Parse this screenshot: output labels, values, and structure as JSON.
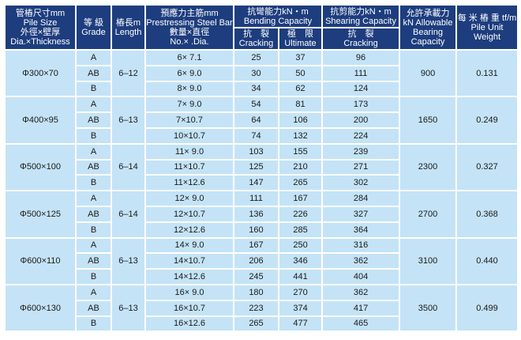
{
  "headers": {
    "pile_size": [
      "管樁尺寸mm",
      "Pile Size",
      "外徑×壁厚",
      "Dia.×Thickness"
    ],
    "grade": [
      "等 級",
      "Grade"
    ],
    "length": [
      "樁長m",
      "Length"
    ],
    "steel_bar": [
      "預應力主筋mm",
      "Prestressing Steel Bar",
      "數量×直徑",
      "No.× .Dia."
    ],
    "bending": [
      "抗彎能力kN・m",
      "Bending Capacity"
    ],
    "bending_cracking": [
      "抗　裂",
      "Cracking"
    ],
    "bending_ultimate": [
      "極　限",
      "Ultimate"
    ],
    "shearing": [
      "抗剪能力kN・m",
      "Shearing Capacity"
    ],
    "shearing_cracking": [
      "抗　裂",
      "Cracking"
    ],
    "bearing": [
      "允許承載力",
      "kN Allowable",
      "Bearing",
      "Capacity"
    ],
    "weight": [
      "每 米 樁 重 tf/m",
      "Pile Unit Weight"
    ]
  },
  "groups": [
    {
      "size": "Φ300×70",
      "length": "6–12",
      "bearing": "900",
      "weight": "0.131",
      "rows": [
        {
          "grade": "A",
          "bar": "6×  7.1",
          "crack": "25",
          "ult": "37",
          "shear": "96"
        },
        {
          "grade": "AB",
          "bar": "6×  9.0",
          "crack": "30",
          "ult": "50",
          "shear": "111"
        },
        {
          "grade": "B",
          "bar": "8×  9.0",
          "crack": "34",
          "ult": "62",
          "shear": "124"
        }
      ]
    },
    {
      "size": "Φ400×95",
      "length": "6–13",
      "bearing": "1650",
      "weight": "0.249",
      "rows": [
        {
          "grade": "A",
          "bar": "7×  9.0",
          "crack": "54",
          "ult": "81",
          "shear": "173"
        },
        {
          "grade": "AB",
          "bar": "7×10.7",
          "crack": "64",
          "ult": "106",
          "shear": "200"
        },
        {
          "grade": "B",
          "bar": "10×10.7",
          "crack": "74",
          "ult": "132",
          "shear": "224"
        }
      ]
    },
    {
      "size": "Φ500×100",
      "length": "6–14",
      "bearing": "2300",
      "weight": "0.327",
      "rows": [
        {
          "grade": "A",
          "bar": "11×  9.0",
          "crack": "103",
          "ult": "155",
          "shear": "239"
        },
        {
          "grade": "AB",
          "bar": "11×10.7",
          "crack": "125",
          "ult": "210",
          "shear": "271"
        },
        {
          "grade": "B",
          "bar": "11×12.6",
          "crack": "147",
          "ult": "265",
          "shear": "302"
        }
      ]
    },
    {
      "size": "Φ500×125",
      "length": "6–14",
      "bearing": "2700",
      "weight": "0.368",
      "rows": [
        {
          "grade": "A",
          "bar": "12×  9.0",
          "crack": "111",
          "ult": "167",
          "shear": "284"
        },
        {
          "grade": "AB",
          "bar": "12×10.7",
          "crack": "136",
          "ult": "226",
          "shear": "327"
        },
        {
          "grade": "B",
          "bar": "12×12.6",
          "crack": "160",
          "ult": "285",
          "shear": "364"
        }
      ]
    },
    {
      "size": "Φ600×110",
      "length": "6–13",
      "bearing": "3100",
      "weight": "0.440",
      "rows": [
        {
          "grade": "A",
          "bar": "14×  9.0",
          "crack": "167",
          "ult": "250",
          "shear": "316"
        },
        {
          "grade": "AB",
          "bar": "14×10.7",
          "crack": "206",
          "ult": "346",
          "shear": "362"
        },
        {
          "grade": "B",
          "bar": "14×12.6",
          "crack": "245",
          "ult": "441",
          "shear": "404"
        }
      ]
    },
    {
      "size": "Φ600×130",
      "length": "6–13",
      "bearing": "3500",
      "weight": "0.499",
      "rows": [
        {
          "grade": "A",
          "bar": "16×  9.0",
          "crack": "180",
          "ult": "270",
          "shear": "362"
        },
        {
          "grade": "AB",
          "bar": "16×10.7",
          "crack": "223",
          "ult": "374",
          "shear": "417"
        },
        {
          "grade": "B",
          "bar": "16×12.6",
          "crack": "265",
          "ult": "477",
          "shear": "465"
        }
      ]
    }
  ]
}
